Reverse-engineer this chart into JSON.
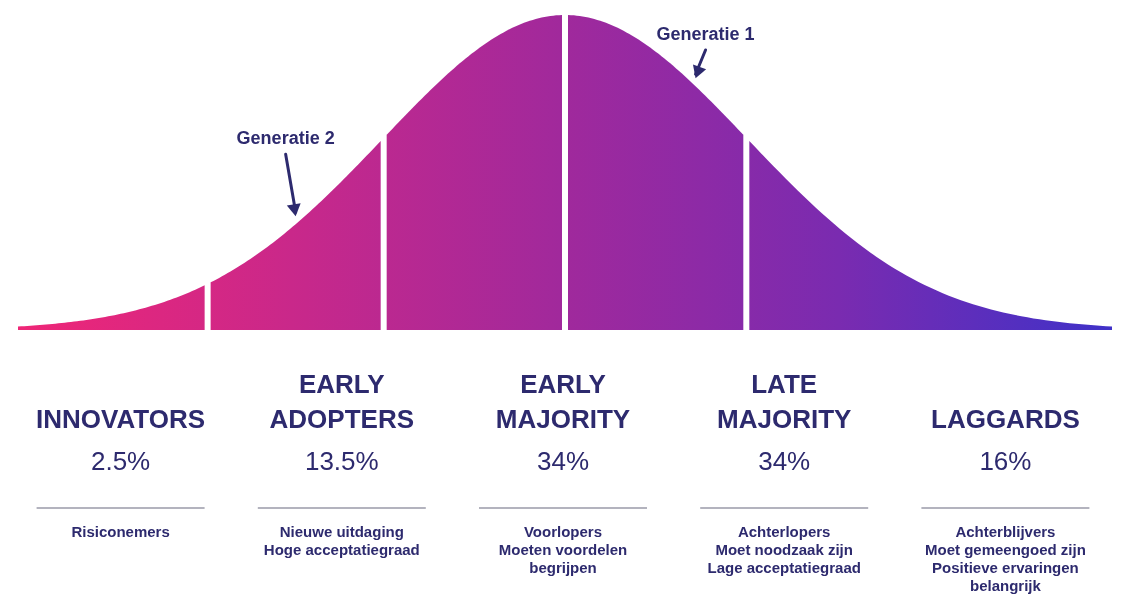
{
  "chart_data": {
    "type": "other",
    "categories": [
      "INNOVATORS",
      "EARLY ADOPTERS",
      "EARLY MAJORITY",
      "LATE MAJORITY",
      "LAGGARDS"
    ],
    "values": [
      2.5,
      13.5,
      34,
      34,
      16
    ],
    "value_labels": [
      "2.5%",
      "13.5%",
      "34%",
      "34%",
      "16%"
    ],
    "colors": [
      "#ef2677",
      "#c9288a",
      "#a0299c",
      "#7a2bb0",
      "#3f31c8"
    ],
    "annotations": [
      {
        "text": "Risiconemers",
        "x": "INNOVATORS"
      },
      {
        "text": "Nieuwe uitdaging\nHoge acceptatiegraad",
        "x": "EARLY ADOPTERS"
      },
      {
        "text": "Voorlopers\nMoeten voordelen\nbegrijpen",
        "x": "EARLY MAJORITY"
      },
      {
        "text": "Achterlopers\nMoet noodzaak zijn\nLage acceptatiegraad",
        "x": "LATE MAJORITY"
      },
      {
        "text": "Achterblijvers\nMoet gemeengoed zijn\nPositieve ervaringen\nbelangrijk",
        "x": "LAGGARDS"
      },
      {
        "text": "Generatie 2",
        "x": "EARLY ADOPTERS"
      },
      {
        "text": "Generatie 1",
        "x": "LATE MAJORITY"
      }
    ]
  }
}
